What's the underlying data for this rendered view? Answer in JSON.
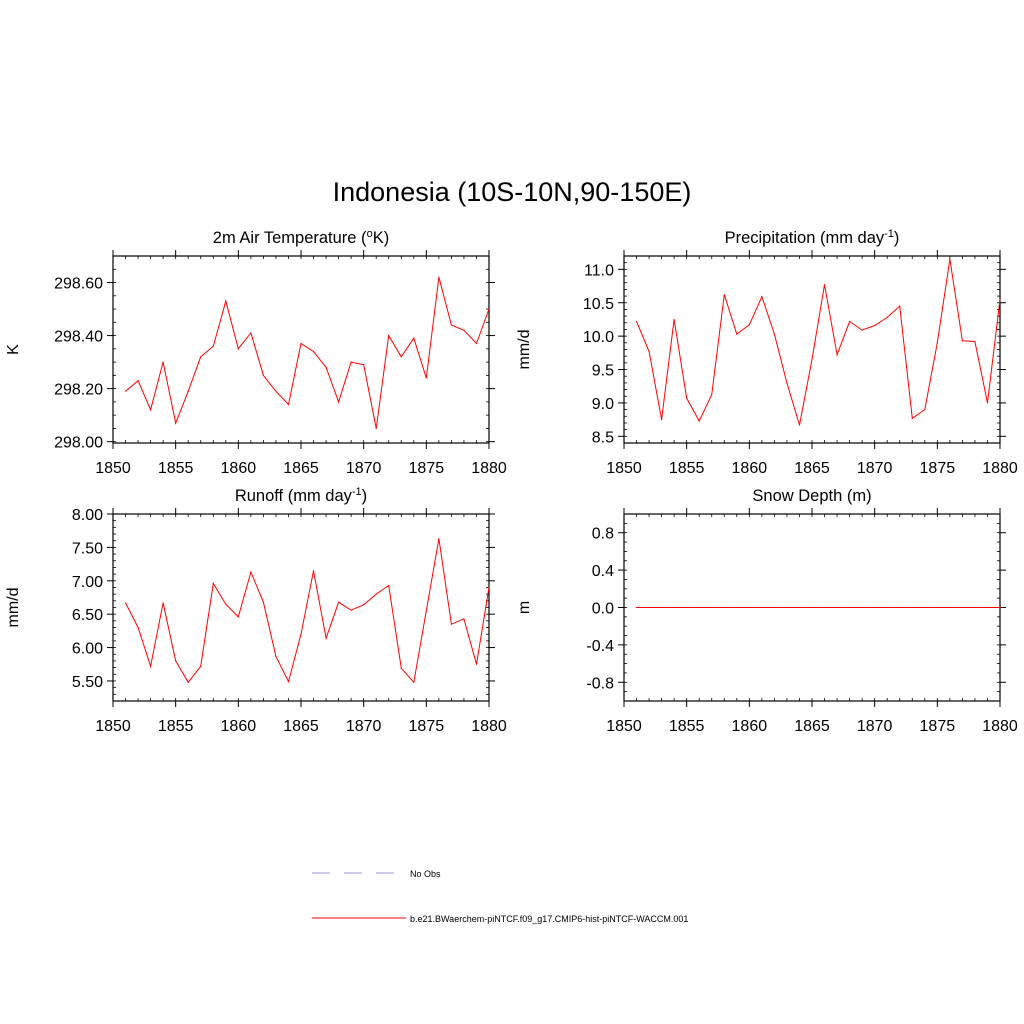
{
  "figure": {
    "title": "Indonesia (10S-10N,90-150E)"
  },
  "legend": {
    "entries": [
      {
        "label": "No Obs",
        "color": "#9999dd",
        "style": "dashed"
      },
      {
        "label": "b.e21.BWaerchem-piNTCF.f09_g17.CMIP6-hist-piNTCF-WACCM.001",
        "color": "#ff0000",
        "style": "solid"
      }
    ]
  },
  "chart_data": [
    {
      "type": "line",
      "title_main": "2m Air Temperature (",
      "title_sup": "o",
      "title_end": "K)",
      "ylabel": "K",
      "xlim": [
        1850,
        1880
      ],
      "ylim": [
        297.995,
        298.7
      ],
      "xticks": [
        1850,
        1855,
        1860,
        1865,
        1870,
        1875,
        1880
      ],
      "yticks": [
        298.0,
        298.2,
        298.4,
        298.6
      ],
      "ytick_labels": [
        "298.00",
        "298.20",
        "298.40",
        "298.60"
      ],
      "yminor_step": 0.05,
      "color": "#ff0000",
      "series": [
        {
          "x": [
            1851,
            1852,
            1853,
            1854,
            1855,
            1856,
            1857,
            1858,
            1859,
            1860,
            1861,
            1862,
            1863,
            1864,
            1865,
            1866,
            1867,
            1868,
            1869,
            1870,
            1871,
            1872,
            1873,
            1874,
            1875,
            1876,
            1877,
            1878,
            1879,
            1880
          ],
          "values": [
            298.19,
            298.23,
            298.12,
            298.3,
            298.07,
            298.19,
            298.32,
            298.36,
            298.53,
            298.35,
            298.41,
            298.25,
            298.19,
            298.14,
            298.37,
            298.34,
            298.28,
            298.15,
            298.3,
            298.29,
            298.05,
            298.4,
            298.32,
            298.39,
            298.24,
            298.62,
            298.44,
            298.42,
            298.37,
            298.5
          ]
        }
      ]
    },
    {
      "type": "line",
      "title_main": "Precipitation (mm day",
      "title_sup": "-1",
      "title_end": ")",
      "ylabel": "mm/d",
      "xlim": [
        1850,
        1880
      ],
      "ylim": [
        8.4,
        11.2
      ],
      "xticks": [
        1850,
        1855,
        1860,
        1865,
        1870,
        1875,
        1880
      ],
      "yticks": [
        8.5,
        9.0,
        9.5,
        10.0,
        10.5,
        11.0
      ],
      "ytick_labels": [
        "8.5",
        "9.0",
        "9.5",
        "10.0",
        "10.5",
        "11.0"
      ],
      "yminor_step": 0.1,
      "color": "#ff0000",
      "series": [
        {
          "x": [
            1851,
            1852,
            1853,
            1854,
            1855,
            1856,
            1857,
            1858,
            1859,
            1860,
            1861,
            1862,
            1863,
            1864,
            1865,
            1866,
            1867,
            1868,
            1869,
            1870,
            1871,
            1872,
            1873,
            1874,
            1875,
            1876,
            1877,
            1878,
            1879,
            1880
          ],
          "values": [
            10.22,
            9.77,
            8.75,
            10.25,
            9.07,
            8.73,
            9.12,
            10.62,
            10.03,
            10.17,
            10.59,
            10.03,
            9.3,
            8.67,
            9.65,
            10.77,
            9.72,
            10.22,
            10.09,
            10.16,
            10.28,
            10.45,
            8.77,
            8.9,
            9.9,
            11.15,
            9.93,
            9.92,
            9.0,
            10.55
          ]
        }
      ]
    },
    {
      "type": "line",
      "title_main": "Runoff (mm day",
      "title_sup": "-1",
      "title_end": ")",
      "ylabel": "mm/d",
      "xlim": [
        1850,
        1880
      ],
      "ylim": [
        5.2,
        8.0
      ],
      "xticks": [
        1850,
        1855,
        1860,
        1865,
        1870,
        1875,
        1880
      ],
      "yticks": [
        5.5,
        6.0,
        6.5,
        7.0,
        7.5,
        8.0
      ],
      "ytick_labels": [
        "5.50",
        "6.00",
        "6.50",
        "7.00",
        "7.50",
        "8.00"
      ],
      "yminor_step": 0.1,
      "color": "#ff0000",
      "series": [
        {
          "x": [
            1851,
            1852,
            1853,
            1854,
            1855,
            1856,
            1857,
            1858,
            1859,
            1860,
            1861,
            1862,
            1863,
            1864,
            1865,
            1866,
            1867,
            1868,
            1869,
            1870,
            1871,
            1872,
            1873,
            1874,
            1875,
            1876,
            1877,
            1878,
            1879,
            1880
          ],
          "values": [
            6.67,
            6.3,
            5.72,
            6.67,
            5.8,
            5.48,
            5.72,
            6.96,
            6.65,
            6.46,
            7.13,
            6.68,
            5.87,
            5.49,
            6.2,
            7.15,
            6.14,
            6.68,
            6.56,
            6.64,
            6.8,
            6.93,
            5.69,
            5.48,
            6.55,
            7.63,
            6.35,
            6.43,
            5.75,
            6.9
          ]
        }
      ]
    },
    {
      "type": "line",
      "title_main": "Snow Depth (m)",
      "title_sup": "",
      "title_end": "",
      "ylabel": "m",
      "xlim": [
        1850,
        1880
      ],
      "ylim": [
        -1.0,
        1.0
      ],
      "xticks": [
        1850,
        1855,
        1860,
        1865,
        1870,
        1875,
        1880
      ],
      "yticks": [
        -0.8,
        -0.4,
        0.0,
        0.4,
        0.8
      ],
      "ytick_labels": [
        "-0.8",
        "-0.4",
        "0.0",
        "0.4",
        "0.8"
      ],
      "yminor_step": 0.1,
      "color": "#ff0000",
      "series": [
        {
          "x": [
            1851,
            1852,
            1853,
            1854,
            1855,
            1856,
            1857,
            1858,
            1859,
            1860,
            1861,
            1862,
            1863,
            1864,
            1865,
            1866,
            1867,
            1868,
            1869,
            1870,
            1871,
            1872,
            1873,
            1874,
            1875,
            1876,
            1877,
            1878,
            1879,
            1880
          ],
          "values": [
            0,
            0,
            0,
            0,
            0,
            0,
            0,
            0,
            0,
            0,
            0,
            0,
            0,
            0,
            0,
            0,
            0,
            0,
            0,
            0,
            0,
            0,
            0,
            0,
            0,
            0,
            0,
            0,
            0,
            0
          ]
        }
      ]
    }
  ]
}
